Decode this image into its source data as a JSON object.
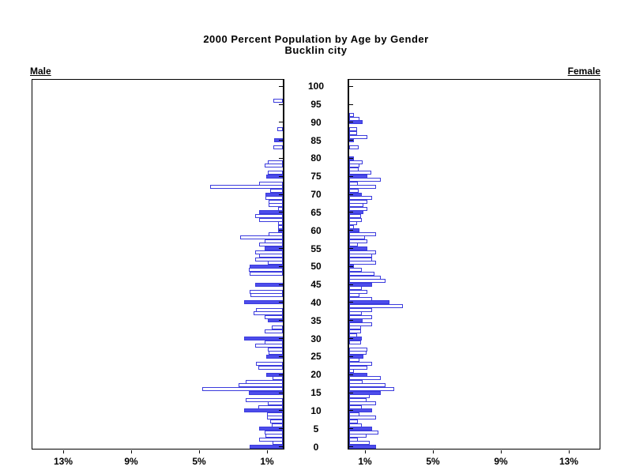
{
  "title": {
    "line1": "2000 Percent Population by Age by Gender",
    "line2": "Bucklin city"
  },
  "panel_labels": {
    "male": "Male",
    "female": "Female"
  },
  "axis": {
    "age_tick_labels": [
      0,
      5,
      10,
      15,
      20,
      25,
      30,
      35,
      40,
      45,
      50,
      55,
      60,
      65,
      70,
      75,
      80,
      85,
      90,
      95,
      100
    ],
    "male_pct_ticks": [
      {
        "label": "13%",
        "pct": 13
      },
      {
        "label": "9%",
        "pct": 9
      },
      {
        "label": "5%",
        "pct": 5
      },
      {
        "label": "1%",
        "pct": 1
      }
    ],
    "female_pct_ticks": [
      {
        "label": "1%",
        "pct": 1
      },
      {
        "label": "5%",
        "pct": 5
      },
      {
        "label": "9%",
        "pct": 9
      },
      {
        "label": "13%",
        "pct": 13
      }
    ]
  },
  "colors": {
    "bar_fill": "#4d4deb",
    "bar_outline": "#3b3bdd",
    "axis": "#000000",
    "background": "#ffffff",
    "text": "#000000"
  },
  "chart_data": {
    "type": "bar",
    "orientation": "horizontal-pyramid",
    "title": "2000 Percent Population by Age by Gender",
    "subtitle": "Bucklin city",
    "unit": "percent of total population",
    "age_min": 0,
    "age_max": 100,
    "pct_axis_range": [
      0,
      14.8
    ],
    "pct_axis_labeled_ticks": [
      1,
      5,
      9,
      13
    ],
    "style_rule": "bars at ages divisible by 5 are solid blue; all other ages are white with blue outline",
    "legend_position": "none",
    "grid": false,
    "ages": [
      0,
      1,
      2,
      3,
      4,
      5,
      6,
      7,
      8,
      9,
      10,
      11,
      12,
      13,
      14,
      15,
      16,
      17,
      18,
      19,
      20,
      21,
      22,
      23,
      24,
      25,
      26,
      27,
      28,
      29,
      30,
      31,
      32,
      33,
      34,
      35,
      36,
      37,
      38,
      39,
      40,
      41,
      42,
      43,
      44,
      45,
      46,
      47,
      48,
      49,
      50,
      51,
      52,
      53,
      54,
      55,
      56,
      57,
      58,
      59,
      60,
      61,
      62,
      63,
      64,
      65,
      66,
      67,
      68,
      69,
      70,
      71,
      72,
      73,
      74,
      75,
      76,
      77,
      78,
      79,
      80,
      81,
      82,
      83,
      84,
      85,
      86,
      87,
      88,
      89,
      90,
      91,
      92,
      93,
      94,
      95,
      96,
      97,
      98,
      99,
      100
    ],
    "series": [
      {
        "name": "Male",
        "values": [
          1.95,
          0.6,
          1.4,
          1.0,
          1.06,
          1.4,
          0.63,
          0.75,
          0.94,
          0.94,
          2.26,
          1.45,
          0.9,
          2.2,
          0,
          2.0,
          4.75,
          2.6,
          2.2,
          0.6,
          0.98,
          0,
          1.45,
          1.6,
          0,
          0.98,
          0.83,
          0.9,
          1.64,
          1.06,
          2.26,
          0,
          1.06,
          0.67,
          0,
          0.9,
          1.06,
          1.7,
          1.6,
          0,
          2.26,
          0,
          1.9,
          1.96,
          0,
          1.64,
          0,
          0,
          1.96,
          2.0,
          1.95,
          0.9,
          1.63,
          1.4,
          1.63,
          1.09,
          1.4,
          1.06,
          2.53,
          0.86,
          0.26,
          0.26,
          0.26,
          1.4,
          1.63,
          1.4,
          0.26,
          0.82,
          0.82,
          1.0,
          1.0,
          0.75,
          4.3,
          1.4,
          0,
          0.98,
          0.9,
          0,
          1.05,
          0.87,
          0,
          0,
          0,
          0.54,
          0,
          0.5,
          0,
          0,
          0.31,
          0,
          0,
          0,
          0,
          0,
          0,
          0,
          0.56,
          0,
          0,
          0,
          0
        ]
      },
      {
        "name": "Female",
        "values": [
          1.6,
          1.2,
          0.5,
          1.0,
          1.7,
          1.33,
          0.75,
          0.5,
          1.56,
          0.6,
          1.33,
          0.75,
          1.56,
          1.0,
          1.22,
          1.84,
          2.67,
          2.13,
          0.78,
          1.84,
          1.06,
          0.3,
          1.06,
          1.33,
          0.6,
          0.83,
          1.0,
          1.06,
          0,
          0.71,
          0.75,
          0.48,
          0.71,
          0.71,
          1.33,
          0.78,
          1.33,
          0.75,
          1.33,
          3.18,
          2.37,
          1.33,
          0.6,
          1.06,
          0.75,
          1.33,
          2.13,
          1.84,
          1.5,
          0.75,
          0.29,
          1.6,
          1.33,
          1.33,
          1.6,
          1.06,
          0.51,
          1.06,
          0.91,
          1.6,
          0.6,
          0.29,
          0.45,
          0.75,
          0.71,
          0.82,
          1.06,
          0.82,
          1.06,
          1.33,
          0.75,
          0.55,
          1.6,
          0.51,
          1.84,
          1.06,
          1.3,
          0.55,
          0.6,
          0.79,
          0.29,
          0,
          0,
          0.55,
          0,
          0.29,
          1.06,
          0.48,
          0.48,
          0,
          0.79,
          0.6,
          0.3,
          0,
          0,
          0,
          0,
          0,
          0,
          0,
          0
        ]
      }
    ]
  }
}
